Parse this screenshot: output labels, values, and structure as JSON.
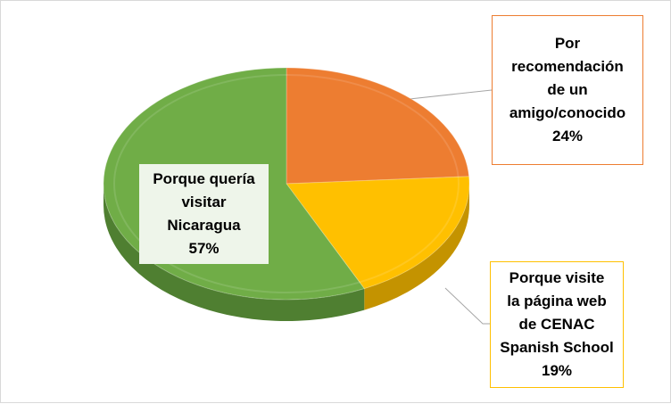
{
  "chart_data": {
    "type": "pie",
    "title": "",
    "slices": [
      {
        "lines": [
          "Por",
          "recomendación",
          "de un",
          "amigo/conocido"
        ],
        "percent_label": "24%",
        "value": 24,
        "color": "#ed7d31",
        "side_color": "#b35a1f"
      },
      {
        "lines": [
          "Porque visite",
          "la página web",
          "de CENAC",
          "Spanish School"
        ],
        "percent_label": "19%",
        "value": 19,
        "color": "#ffc000",
        "side_color": "#c49300"
      },
      {
        "lines": [
          "Porque quería",
          "visitar",
          "Nicaragua"
        ],
        "percent_label": "57%",
        "value": 57,
        "color": "#70ad47",
        "side_color": "#4f7f31"
      }
    ]
  }
}
